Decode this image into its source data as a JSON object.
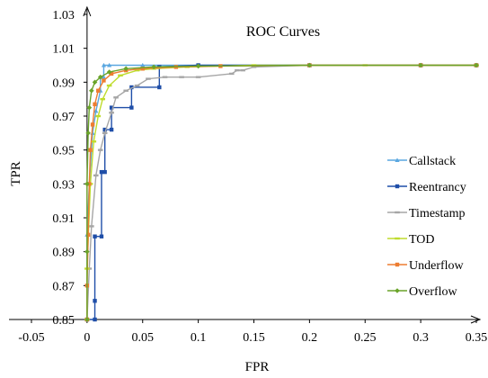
{
  "chart_data": {
    "type": "line",
    "title": "ROC Curves",
    "xlabel": "FPR",
    "ylabel": "TPR",
    "xlim": [
      -0.05,
      0.35
    ],
    "ylim": [
      0.85,
      1.03
    ],
    "xticks": [
      "-0.05",
      "0",
      "0.05",
      "0.1",
      "0.15",
      "0.2",
      "0.25",
      "0.3",
      "0.35"
    ],
    "xtick_values": [
      -0.05,
      0,
      0.05,
      0.1,
      0.15,
      0.2,
      0.25,
      0.3,
      0.35
    ],
    "yticks": [
      "0.85",
      "0.87",
      "0.89",
      "0.91",
      "0.93",
      "0.95",
      "0.97",
      "0.99",
      "1.01",
      "1.03"
    ],
    "ytick_values": [
      0.85,
      0.87,
      0.89,
      0.91,
      0.93,
      0.95,
      0.97,
      0.99,
      1.01,
      1.03
    ],
    "grid": false,
    "legend_position": "right",
    "series": [
      {
        "name": "Callstack",
        "color": "#5aa7e0",
        "marker": "triangle",
        "points": [
          [
            0,
            0.85
          ],
          [
            0,
            0.9
          ],
          [
            0.002,
            0.93
          ],
          [
            0.005,
            0.96
          ],
          [
            0.008,
            0.973
          ],
          [
            0.012,
            0.985
          ],
          [
            0.012,
            0.993
          ],
          [
            0.015,
            0.993
          ],
          [
            0.015,
            1.0
          ],
          [
            0.02,
            1.0
          ],
          [
            0.05,
            1.0
          ],
          [
            0.1,
            1.0
          ],
          [
            0.2,
            1.0
          ],
          [
            0.3,
            1.0
          ],
          [
            0.35,
            1.0
          ]
        ]
      },
      {
        "name": "Reentrancy",
        "color": "#1f4ea8",
        "marker": "square",
        "points": [
          [
            0,
            0.85
          ],
          [
            0.007,
            0.85
          ],
          [
            0.007,
            0.861
          ],
          [
            0.007,
            0.899
          ],
          [
            0.013,
            0.899
          ],
          [
            0.013,
            0.937
          ],
          [
            0.016,
            0.937
          ],
          [
            0.016,
            0.962
          ],
          [
            0.022,
            0.962
          ],
          [
            0.022,
            0.975
          ],
          [
            0.04,
            0.975
          ],
          [
            0.04,
            0.987
          ],
          [
            0.065,
            0.987
          ],
          [
            0.065,
            0.999
          ],
          [
            0.1,
            1.0
          ],
          [
            0.2,
            1.0
          ],
          [
            0.3,
            1.0
          ],
          [
            0.35,
            1.0
          ]
        ]
      },
      {
        "name": "Timestamp",
        "color": "#a6a6a6",
        "marker": "dash",
        "points": [
          [
            0,
            0.85
          ],
          [
            0.002,
            0.88
          ],
          [
            0.004,
            0.905
          ],
          [
            0.008,
            0.935
          ],
          [
            0.012,
            0.95
          ],
          [
            0.016,
            0.96
          ],
          [
            0.022,
            0.972
          ],
          [
            0.026,
            0.981
          ],
          [
            0.035,
            0.985
          ],
          [
            0.045,
            0.988
          ],
          [
            0.055,
            0.992
          ],
          [
            0.07,
            0.993
          ],
          [
            0.085,
            0.993
          ],
          [
            0.1,
            0.993
          ],
          [
            0.13,
            0.995
          ],
          [
            0.135,
            0.997
          ],
          [
            0.14,
            0.997
          ],
          [
            0.15,
            0.999
          ],
          [
            0.2,
            1.0
          ],
          [
            0.3,
            1.0
          ],
          [
            0.35,
            1.0
          ]
        ]
      },
      {
        "name": "TOD",
        "color": "#bfdc2e",
        "marker": "dash",
        "points": [
          [
            0,
            0.85
          ],
          [
            0,
            0.88
          ],
          [
            0.003,
            0.93
          ],
          [
            0.006,
            0.955
          ],
          [
            0.01,
            0.97
          ],
          [
            0.014,
            0.98
          ],
          [
            0.02,
            0.988
          ],
          [
            0.03,
            0.994
          ],
          [
            0.045,
            0.997
          ],
          [
            0.06,
            0.998
          ],
          [
            0.09,
            0.999
          ],
          [
            0.15,
            1.0
          ],
          [
            0.25,
            1.0
          ],
          [
            0.35,
            1.0
          ]
        ]
      },
      {
        "name": "Underflow",
        "color": "#ed7d31",
        "marker": "square",
        "points": [
          [
            0,
            0.85
          ],
          [
            0,
            0.87
          ],
          [
            0.001,
            0.9
          ],
          [
            0.002,
            0.93
          ],
          [
            0.003,
            0.95
          ],
          [
            0.005,
            0.965
          ],
          [
            0.007,
            0.977
          ],
          [
            0.01,
            0.985
          ],
          [
            0.015,
            0.991
          ],
          [
            0.022,
            0.995
          ],
          [
            0.035,
            0.997
          ],
          [
            0.05,
            0.998
          ],
          [
            0.08,
            0.999
          ],
          [
            0.12,
            0.9995
          ],
          [
            0.2,
            1.0
          ],
          [
            0.3,
            1.0
          ],
          [
            0.35,
            1.0
          ]
        ]
      },
      {
        "name": "Overflow",
        "color": "#6aa42a",
        "marker": "diamond",
        "points": [
          [
            0,
            0.85
          ],
          [
            0,
            0.89
          ],
          [
            0,
            0.93
          ],
          [
            0.001,
            0.96
          ],
          [
            0.002,
            0.975
          ],
          [
            0.004,
            0.985
          ],
          [
            0.007,
            0.99
          ],
          [
            0.012,
            0.993
          ],
          [
            0.02,
            0.996
          ],
          [
            0.035,
            0.998
          ],
          [
            0.06,
            0.999
          ],
          [
            0.1,
            0.9995
          ],
          [
            0.2,
            1.0
          ],
          [
            0.3,
            1.0
          ],
          [
            0.35,
            1.0
          ]
        ]
      }
    ]
  }
}
